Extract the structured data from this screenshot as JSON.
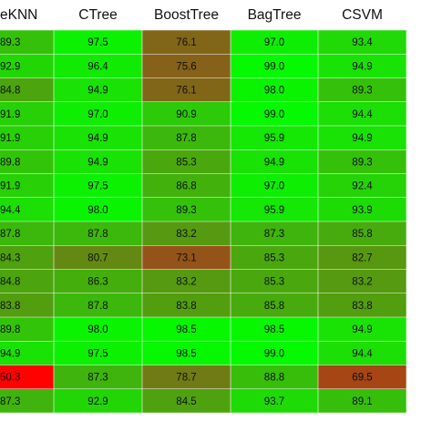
{
  "chart_data": {
    "type": "heatmap",
    "title": "",
    "columns": [
      "eKNN",
      "CTree",
      "BoostTree",
      "BagTree",
      "CSVM"
    ],
    "value_labels": [
      [
        "89.3",
        "97.5",
        "76.1",
        "97.0",
        "93.4"
      ],
      [
        "92.9",
        "96.4",
        "75.6",
        "99.0",
        "94.9"
      ],
      [
        "84.8",
        "94.9",
        "76.1",
        "98.0",
        "89.3"
      ],
      [
        "91.9",
        "97.0",
        "90.9",
        "99.0",
        "94.4"
      ],
      [
        "91.9",
        "94.9",
        "87.8",
        "95.9",
        "94.9"
      ],
      [
        "89.8",
        "94.9",
        "85.3",
        "94.9",
        "89.3"
      ],
      [
        "91.9",
        "97.5",
        "86.8",
        "97.0",
        "92.4"
      ],
      [
        "94.4",
        "98.0",
        "89.3",
        "95.9",
        "93.9"
      ],
      [
        "87.8",
        "87.8",
        "83.2",
        "87.3",
        "85.8"
      ],
      [
        "84.3",
        "80.7",
        "73.1",
        "85.3",
        "82.7"
      ],
      [
        "84.8",
        "86.3",
        "83.2",
        "85.3",
        "83.2"
      ],
      [
        "83.8",
        "87.8",
        "83.8",
        "85.8",
        "83.8"
      ],
      [
        "89.8",
        "98.0",
        "98.5",
        "98.5",
        "94.9"
      ],
      [
        "94.9",
        "97.5",
        "98.5",
        "99.0",
        "94.4"
      ],
      [
        "50.3",
        "87.3",
        "78.7",
        "88.8",
        "69.5"
      ],
      [
        "87.3",
        "92.9",
        "84.5",
        "93.7",
        "89.1"
      ]
    ],
    "values": [
      [
        89.3,
        97.5,
        76.1,
        97.0,
        93.4
      ],
      [
        92.9,
        96.4,
        75.6,
        99.0,
        94.9
      ],
      [
        84.8,
        94.9,
        76.1,
        98.0,
        89.3
      ],
      [
        91.9,
        97.0,
        90.9,
        99.0,
        94.4
      ],
      [
        91.9,
        94.9,
        87.8,
        95.9,
        94.9
      ],
      [
        89.8,
        94.9,
        85.3,
        94.9,
        89.3
      ],
      [
        91.9,
        97.5,
        86.8,
        97.0,
        92.4
      ],
      [
        94.4,
        98.0,
        89.3,
        95.9,
        93.9
      ],
      [
        87.8,
        87.8,
        83.2,
        87.3,
        85.8
      ],
      [
        84.3,
        80.7,
        73.1,
        85.3,
        82.7
      ],
      [
        84.8,
        86.3,
        83.2,
        85.3,
        83.2
      ],
      [
        83.8,
        87.8,
        83.8,
        85.8,
        83.8
      ],
      [
        89.8,
        98.0,
        98.5,
        98.5,
        94.9
      ],
      [
        94.9,
        97.5,
        98.5,
        99.0,
        94.4
      ],
      [
        50.3,
        87.3,
        78.7,
        88.8,
        69.5
      ],
      [
        87.3,
        92.9,
        84.5,
        93.7,
        89.1
      ]
    ],
    "color_scale": {
      "low_color": "#ff0000",
      "mid_color": "#8b5a1a",
      "high_color": "#00ff00",
      "low": 50,
      "mid": 75,
      "high": 100
    },
    "grid": true,
    "legend": "none"
  }
}
